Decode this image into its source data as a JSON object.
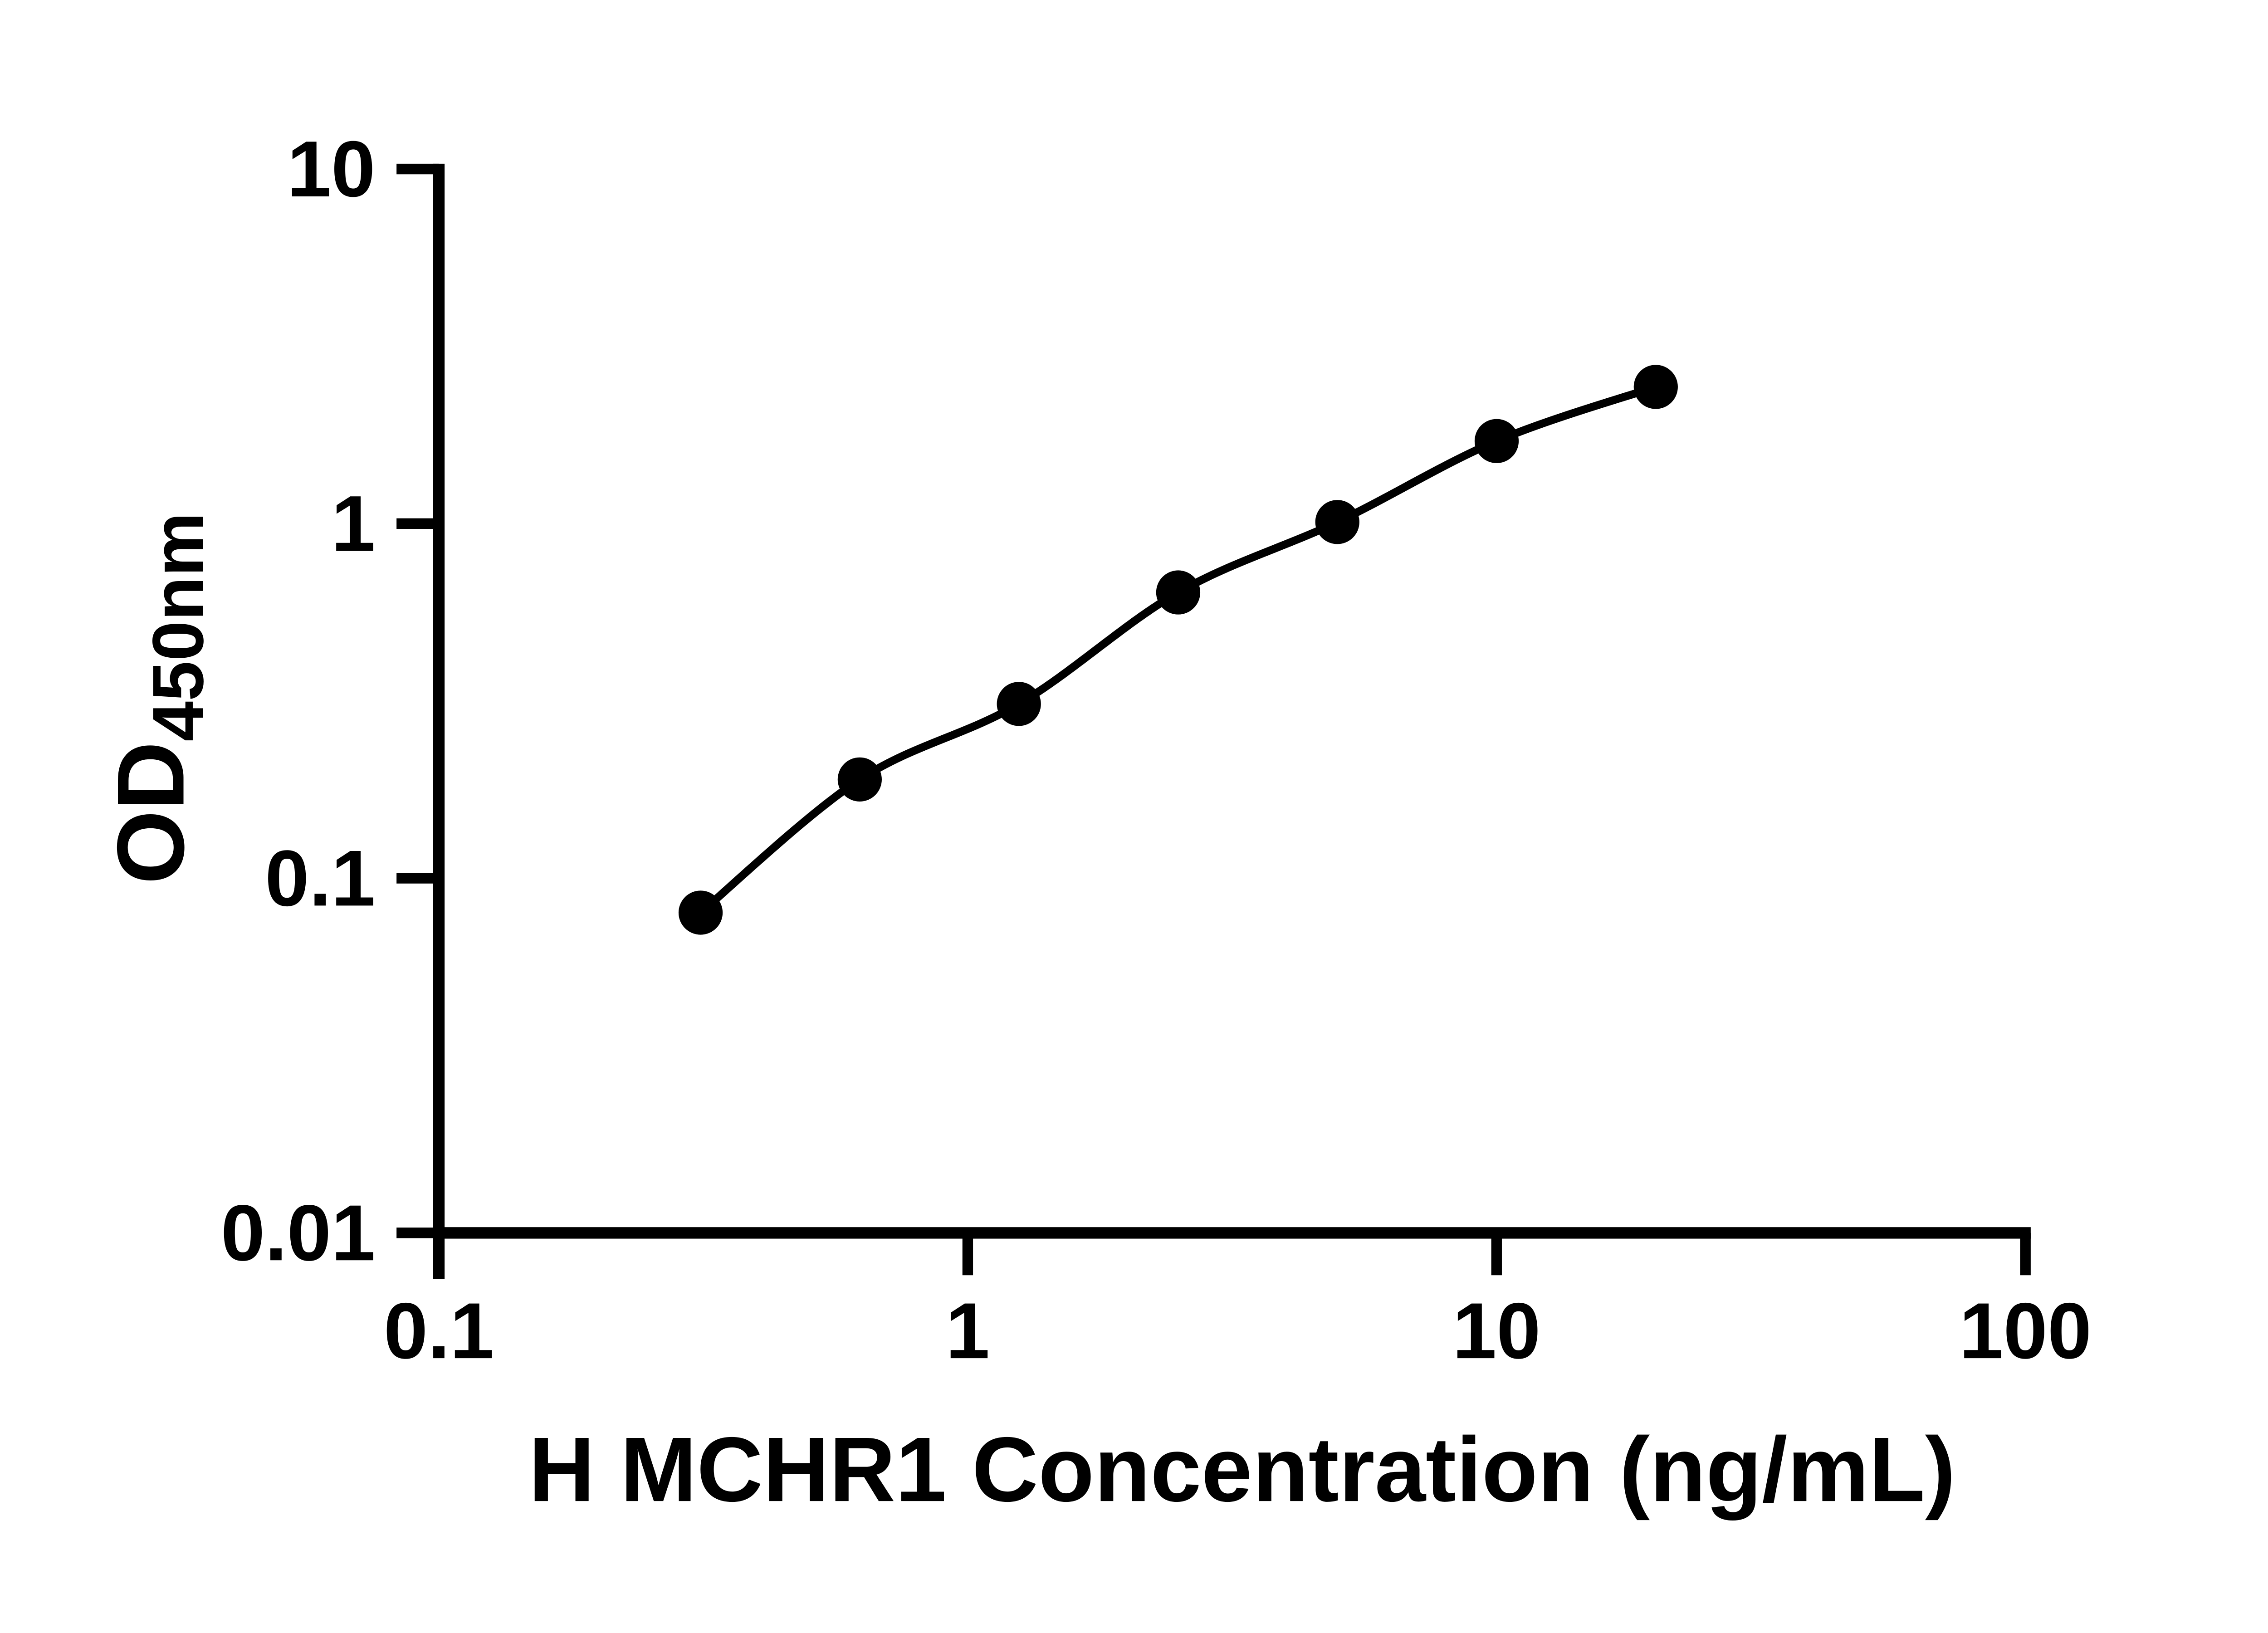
{
  "figure": {
    "background_color": "#ffffff",
    "ink_color": "#000000"
  },
  "chart_data": {
    "type": "scatter",
    "subtype": "standard-curve-with-smooth-fit-line",
    "title": "",
    "xlabel": "H MCHR1 Concentration (ng/mL)",
    "ylabel": "OD450nm",
    "ylabel_main": "OD",
    "ylabel_sub": "450nm",
    "x_scale": "log10",
    "y_scale": "log10",
    "xlim": [
      0.1,
      100
    ],
    "ylim": [
      0.01,
      10
    ],
    "grid": false,
    "legend": "none",
    "x_ticks": [
      {
        "value": 0.1,
        "label": "0.1"
      },
      {
        "value": 1,
        "label": "1"
      },
      {
        "value": 10,
        "label": "10"
      },
      {
        "value": 100,
        "label": "100"
      }
    ],
    "y_ticks": [
      {
        "value": 10,
        "label": "10"
      },
      {
        "value": 1,
        "label": "1"
      },
      {
        "value": 0.1,
        "label": "0.1"
      },
      {
        "value": 0.01,
        "label": "0.01"
      }
    ],
    "series": [
      {
        "marker": "filled-circle",
        "color": "#000000",
        "x": [
          0.3125,
          0.625,
          1.25,
          2.5,
          5,
          10,
          20
        ],
        "y": [
          0.08,
          0.19,
          0.31,
          0.64,
          1.01,
          1.71,
          2.43
        ]
      }
    ]
  }
}
